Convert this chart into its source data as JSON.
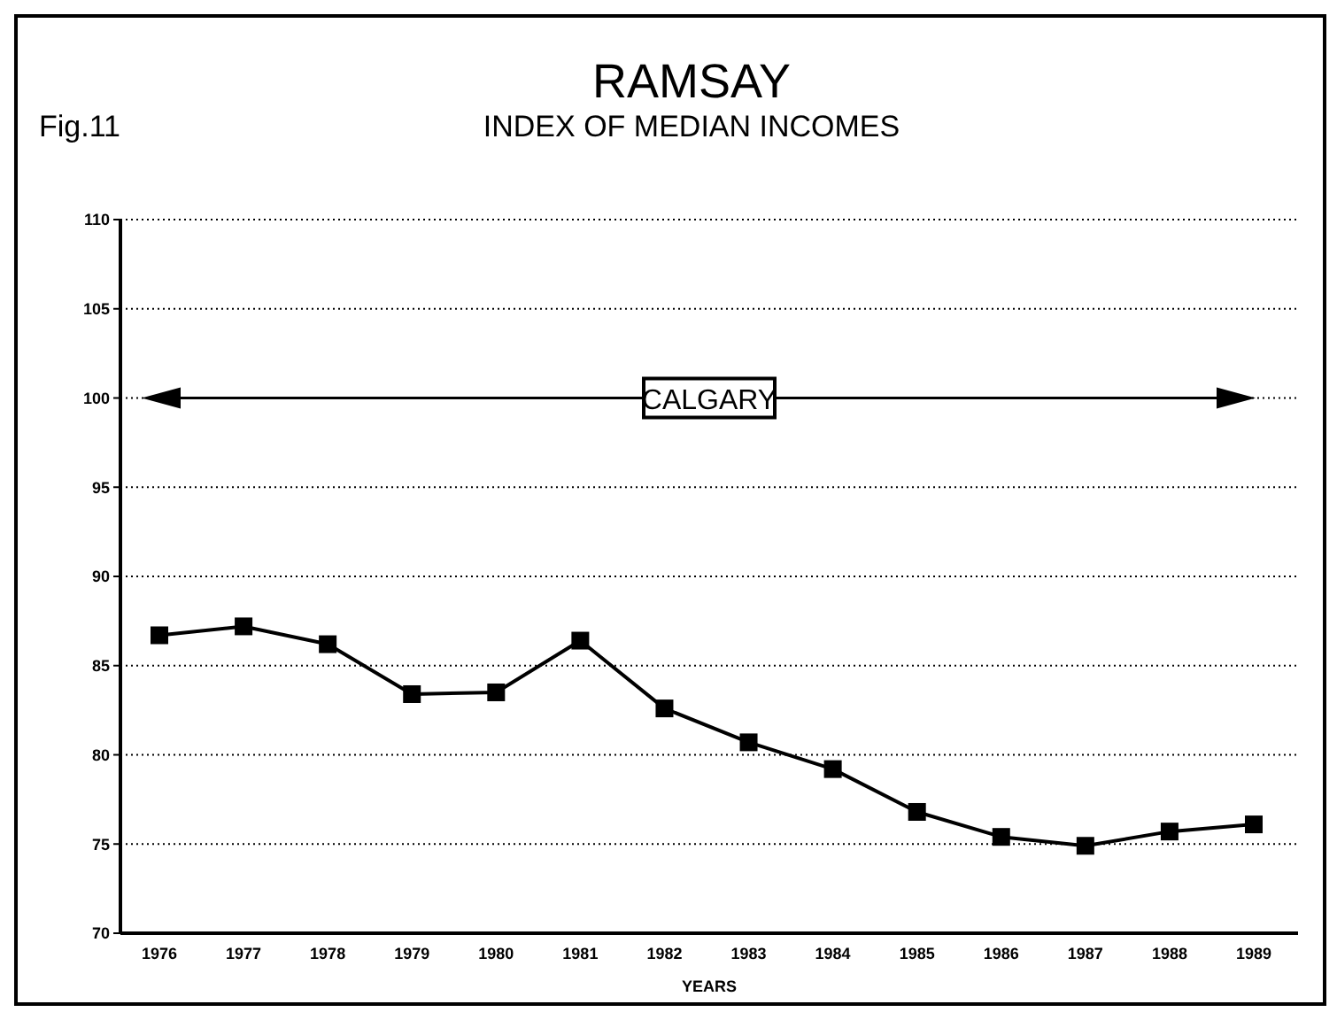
{
  "chart_data": {
    "type": "line",
    "title": "RAMSAY",
    "subtitle": "INDEX OF MEDIAN INCOMES",
    "annotations": [
      "Fig.11"
    ],
    "xlabel": "YEARS",
    "categories": [
      "1976",
      "1977",
      "1978",
      "1979",
      "1980",
      "1981",
      "1982",
      "1983",
      "1984",
      "1985",
      "1986",
      "1987",
      "1988",
      "1989"
    ],
    "series": [
      {
        "color": "#000000",
        "values": [
          86.7,
          87.2,
          86.2,
          83.4,
          83.5,
          86.4,
          82.6,
          80.7,
          79.2,
          76.8,
          75.4,
          74.9,
          75.7,
          76.1
        ]
      }
    ],
    "ylim": [
      70,
      110
    ],
    "yticks": [
      70,
      75,
      80,
      85,
      90,
      95,
      100,
      105,
      110
    ],
    "grid": "y",
    "marker": "square",
    "line_style": "solid",
    "ref_lines": [
      {
        "axis": "y",
        "value": 100,
        "label": "CALGARY",
        "color": "#000000"
      }
    ]
  }
}
